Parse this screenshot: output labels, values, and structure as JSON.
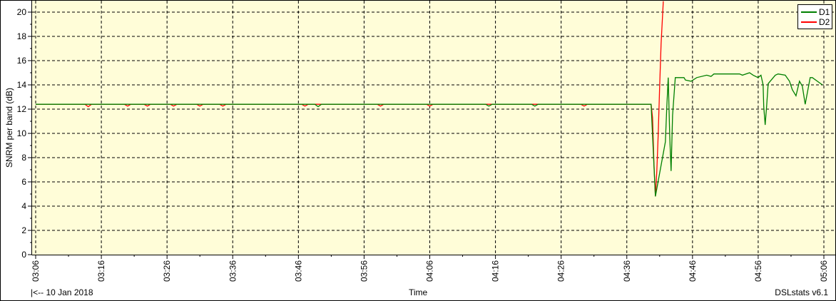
{
  "chart_data": {
    "type": "line",
    "title": "",
    "xlabel": "Time",
    "ylabel": "SNRM per band (dB)",
    "xlim": [
      "03:06",
      "05:06"
    ],
    "ylim": [
      0,
      20.9
    ],
    "xticks": [
      "03:06",
      "03:16",
      "03:26",
      "03:36",
      "03:46",
      "03:56",
      "04:06",
      "04:16",
      "04:26",
      "04:36",
      "04:46",
      "04:56",
      "05:06"
    ],
    "yticks": [
      0,
      2,
      4,
      6,
      8,
      10,
      12,
      14,
      16,
      18,
      20
    ],
    "grid": true,
    "legend_position": "top-right",
    "background": "#fffdd8",
    "series": [
      {
        "name": "D1",
        "color": "#008000",
        "points": [
          [
            "03:06:00",
            12.4
          ],
          [
            "03:48:30",
            12.4
          ],
          [
            "03:49:00",
            12.2
          ],
          [
            "03:49:30",
            12.4
          ],
          [
            "04:14:30",
            12.4
          ],
          [
            "04:15:00",
            12.25
          ],
          [
            "04:15:30",
            12.4
          ],
          [
            "04:21:30",
            12.4
          ],
          [
            "04:22:00",
            12.25
          ],
          [
            "04:22:30",
            12.4
          ],
          [
            "04:39:42",
            12.4
          ],
          [
            "04:40:21",
            4.8
          ],
          [
            "04:41:52",
            9.3
          ],
          [
            "04:42:05",
            12.2
          ],
          [
            "04:42:18",
            14.6
          ],
          [
            "04:42:32",
            9.8
          ],
          [
            "04:42:44",
            6.9
          ],
          [
            "04:42:58",
            11.5
          ],
          [
            "04:43:23",
            14.6
          ],
          [
            "04:44:42",
            14.6
          ],
          [
            "04:44:55",
            14.4
          ],
          [
            "04:45:47",
            14.3
          ],
          [
            "04:46:39",
            14.6
          ],
          [
            "04:48:10",
            14.8
          ],
          [
            "04:48:49",
            14.7
          ],
          [
            "04:49:15",
            14.9
          ],
          [
            "04:53:10",
            14.9
          ],
          [
            "04:53:36",
            14.8
          ],
          [
            "04:54:41",
            15.0
          ],
          [
            "04:55:14",
            14.8
          ],
          [
            "04:55:59",
            14.6
          ],
          [
            "04:56:25",
            14.8
          ],
          [
            "04:56:45",
            14.0
          ],
          [
            "04:56:51",
            12.2
          ],
          [
            "04:57:04",
            10.7
          ],
          [
            "04:57:17",
            12.2
          ],
          [
            "04:57:31",
            14.1
          ],
          [
            "04:58:36",
            14.8
          ],
          [
            "04:59:02",
            14.9
          ],
          [
            "05:00:07",
            14.8
          ],
          [
            "05:00:46",
            14.3
          ],
          [
            "05:01:12",
            13.6
          ],
          [
            "05:01:45",
            13.1
          ],
          [
            "05:02:17",
            14.3
          ],
          [
            "05:02:43",
            13.9
          ],
          [
            "05:03:09",
            12.4
          ],
          [
            "05:03:55",
            14.6
          ],
          [
            "05:04:15",
            14.6
          ],
          [
            "05:05:46",
            14.0
          ]
        ]
      },
      {
        "name": "D2",
        "color": "#ff0000",
        "points": [
          [
            "03:06:00",
            12.4
          ],
          [
            "03:13:30",
            12.4
          ],
          [
            "03:14:00",
            12.2
          ],
          [
            "03:14:30",
            12.4
          ],
          [
            "03:19:30",
            12.4
          ],
          [
            "03:20:00",
            12.25
          ],
          [
            "03:20:30",
            12.4
          ],
          [
            "03:22:30",
            12.4
          ],
          [
            "03:23:00",
            12.25
          ],
          [
            "03:23:30",
            12.4
          ],
          [
            "03:26:30",
            12.4
          ],
          [
            "03:27:00",
            12.25
          ],
          [
            "03:27:30",
            12.4
          ],
          [
            "03:30:30",
            12.4
          ],
          [
            "03:31:00",
            12.25
          ],
          [
            "03:31:30",
            12.4
          ],
          [
            "03:34:00",
            12.4
          ],
          [
            "03:34:30",
            12.25
          ],
          [
            "03:35:00",
            12.4
          ],
          [
            "03:46:30",
            12.4
          ],
          [
            "03:47:00",
            12.25
          ],
          [
            "03:47:30",
            12.4
          ],
          [
            "03:58:00",
            12.4
          ],
          [
            "03:58:30",
            12.25
          ],
          [
            "03:59:00",
            12.4
          ],
          [
            "04:05:30",
            12.4
          ],
          [
            "04:06:00",
            12.25
          ],
          [
            "04:06:30",
            12.4
          ],
          [
            "04:29:00",
            12.4
          ],
          [
            "04:29:30",
            12.25
          ],
          [
            "04:30:00",
            12.4
          ],
          [
            "04:39:42",
            12.4
          ],
          [
            "04:39:55",
            11.3
          ],
          [
            "04:40:08",
            7.5
          ],
          [
            "04:40:21",
            4.8
          ],
          [
            "04:40:34",
            6.9
          ],
          [
            "04:40:47",
            10.0
          ],
          [
            "04:41:00",
            13.9
          ],
          [
            "04:41:13",
            17.4
          ],
          [
            "04:41:33",
            20.9
          ]
        ]
      }
    ]
  },
  "footer": {
    "date_nav": "|<-- 10 Jan 2018",
    "x_axis_title": "Time",
    "app_version": "DSLstats v6.1"
  }
}
